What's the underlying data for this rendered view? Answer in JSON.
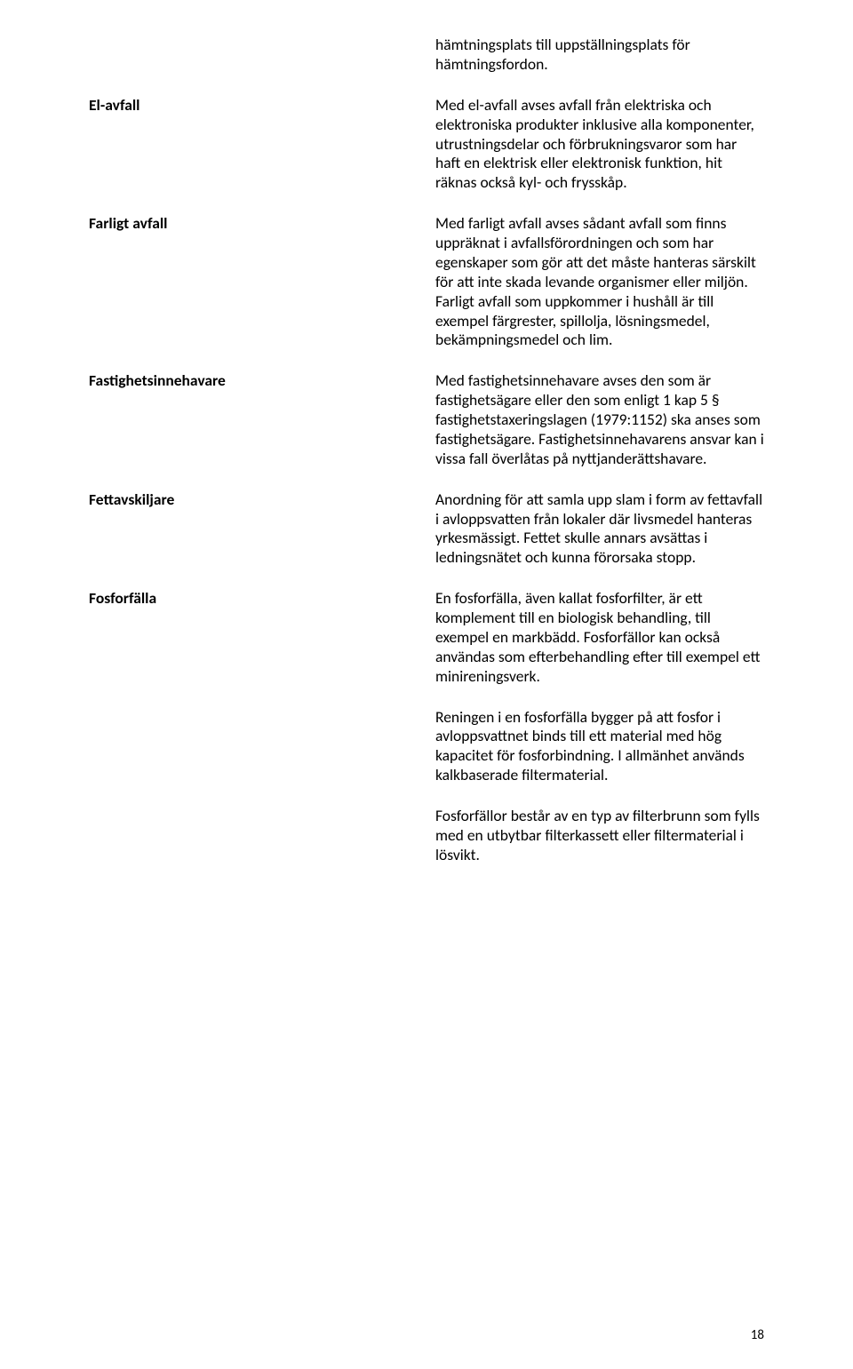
{
  "intro": "hämtningsplats till uppställningsplats för hämtningsfordon.",
  "entries": [
    {
      "term": "El-avfall",
      "paragraphs": [
        "Med el-avfall avses avfall från elektriska och elektroniska produkter inklusive alla komponenter, utrustningsdelar och förbrukningsvaror som har haft en elektrisk eller elektronisk funktion, hit räknas också kyl- och frysskåp."
      ]
    },
    {
      "term": "Farligt avfall",
      "paragraphs": [
        "Med farligt avfall avses sådant avfall som finns uppräknat i avfallsförordningen och som har egenskaper som gör att det måste hanteras särskilt för att inte skada levande organismer eller miljön. Farligt avfall som uppkommer i hushåll är till exempel färgrester, spillolja, lösningsmedel, bekämpningsmedel och lim."
      ]
    },
    {
      "term": "Fastighetsinnehavare",
      "paragraphs": [
        "Med fastighetsinnehavare avses den som är fastighetsägare eller den som enligt 1 kap 5 § fastighetstaxeringslagen (1979:1152) ska anses som fastighetsägare. Fastighetsinnehavarens ansvar kan i vissa fall överlåtas på nyttjanderättshavare."
      ]
    },
    {
      "term": "Fettavskiljare",
      "paragraphs": [
        "Anordning för att samla upp slam i form av fettavfall i avloppsvatten från lokaler där livsmedel hanteras yrkesmässigt. Fettet skulle annars avsättas i ledningsnätet och kunna förorsaka stopp."
      ]
    },
    {
      "term": "Fosforfälla",
      "paragraphs": [
        "En fosforfälla, även kallat fosforfilter, är ett komplement till en biologisk behandling, till exempel en markbädd. Fosforfällor kan också användas som efterbehandling efter till exempel ett minireningsverk.",
        "Reningen i en fosforfälla bygger på att fosfor i avloppsvattnet binds till ett material med hög kapacitet för fosforbindning. I allmänhet används kalkbaserade filtermaterial.",
        "Fosforfällor består av en typ av filterbrunn som fylls med en utbytbar filterkassett eller filtermaterial i lösvikt."
      ]
    }
  ],
  "pageNumber": "18"
}
